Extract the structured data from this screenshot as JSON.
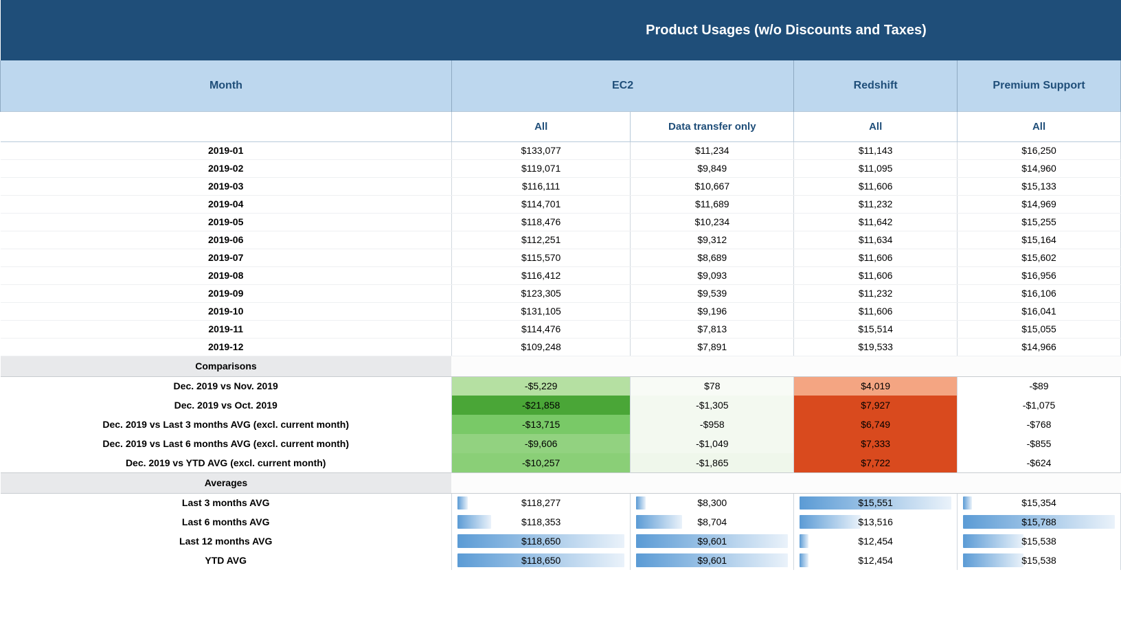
{
  "title": "Product Usages (w/o Discounts and Taxes)",
  "colors": {
    "header_dark": "#1f4e79",
    "header_light": "#bdd7ee",
    "text_navy": "#1f4e79",
    "section_bg": "#e8e9eb",
    "green_light": "#b5e0a2",
    "green_med": "#79c967",
    "green_dark": "#4aa637",
    "red_light": "#f4a582",
    "red_dark": "#d94a1e",
    "bar_blue": "#5b9bd5",
    "bar_fade": "#eaf2fa"
  },
  "headers": {
    "month": "Month",
    "ec2": "EC2",
    "redshift": "Redshift",
    "premium": "Premium Support",
    "ec2_all": "All",
    "ec2_dto": "Data transfer only",
    "redshift_all": "All",
    "premium_all": "All"
  },
  "months": [
    {
      "label": "2019-01",
      "ec2_all": "$133,077",
      "ec2_dto": "$11,234",
      "redshift": "$11,143",
      "premium": "$16,250"
    },
    {
      "label": "2019-02",
      "ec2_all": "$119,071",
      "ec2_dto": "$9,849",
      "redshift": "$11,095",
      "premium": "$14,960"
    },
    {
      "label": "2019-03",
      "ec2_all": "$116,111",
      "ec2_dto": "$10,667",
      "redshift": "$11,606",
      "premium": "$15,133"
    },
    {
      "label": "2019-04",
      "ec2_all": "$114,701",
      "ec2_dto": "$11,689",
      "redshift": "$11,232",
      "premium": "$14,969"
    },
    {
      "label": "2019-05",
      "ec2_all": "$118,476",
      "ec2_dto": "$10,234",
      "redshift": "$11,642",
      "premium": "$15,255"
    },
    {
      "label": "2019-06",
      "ec2_all": "$112,251",
      "ec2_dto": "$9,312",
      "redshift": "$11,634",
      "premium": "$15,164"
    },
    {
      "label": "2019-07",
      "ec2_all": "$115,570",
      "ec2_dto": "$8,689",
      "redshift": "$11,606",
      "premium": "$15,602"
    },
    {
      "label": "2019-08",
      "ec2_all": "$116,412",
      "ec2_dto": "$9,093",
      "redshift": "$11,606",
      "premium": "$16,956"
    },
    {
      "label": "2019-09",
      "ec2_all": "$123,305",
      "ec2_dto": "$9,539",
      "redshift": "$11,232",
      "premium": "$16,106"
    },
    {
      "label": "2019-10",
      "ec2_all": "$131,105",
      "ec2_dto": "$9,196",
      "redshift": "$11,606",
      "premium": "$16,041"
    },
    {
      "label": "2019-11",
      "ec2_all": "$114,476",
      "ec2_dto": "$7,813",
      "redshift": "$15,514",
      "premium": "$15,055"
    },
    {
      "label": "2019-12",
      "ec2_all": "$109,248",
      "ec2_dto": "$7,891",
      "redshift": "$19,533",
      "premium": "$14,966"
    }
  ],
  "sections": {
    "comparisons": "Comparisons",
    "averages": "Averages"
  },
  "comparisons": [
    {
      "label": "Dec. 2019 vs Nov. 2019",
      "ec2_all": {
        "text": "-$5,229",
        "bg": "#b5e0a2"
      },
      "ec2_dto": {
        "text": "$78",
        "bg": "#f8fbf6"
      },
      "redshift": {
        "text": "$4,019",
        "bg": "#f4a582"
      },
      "premium": {
        "text": "-$89",
        "bg": "#ffffff"
      }
    },
    {
      "label": "Dec. 2019 vs Oct. 2019",
      "ec2_all": {
        "text": "-$21,858",
        "bg": "#4aa637"
      },
      "ec2_dto": {
        "text": "-$1,305",
        "bg": "#f3f9f0"
      },
      "redshift": {
        "text": "$7,927",
        "bg": "#d94a1e"
      },
      "premium": {
        "text": "-$1,075",
        "bg": "#ffffff"
      }
    },
    {
      "label": "Dec. 2019 vs Last 3 months AVG (excl. current month)",
      "ec2_all": {
        "text": "-$13,715",
        "bg": "#79c967"
      },
      "ec2_dto": {
        "text": "-$958",
        "bg": "#f3f9f0"
      },
      "redshift": {
        "text": "$6,749",
        "bg": "#d94a1e"
      },
      "premium": {
        "text": "-$768",
        "bg": "#ffffff"
      }
    },
    {
      "label": "Dec. 2019 vs Last 6 months AVG (excl. current month)",
      "ec2_all": {
        "text": "-$9,606",
        "bg": "#92d280"
      },
      "ec2_dto": {
        "text": "-$1,049",
        "bg": "#f3f9f0"
      },
      "redshift": {
        "text": "$7,333",
        "bg": "#d94a1e"
      },
      "premium": {
        "text": "-$855",
        "bg": "#ffffff"
      }
    },
    {
      "label": "Dec. 2019 vs YTD AVG (excl. current month)",
      "ec2_all": {
        "text": "-$10,257",
        "bg": "#8acf77"
      },
      "ec2_dto": {
        "text": "-$1,865",
        "bg": "#eff7eb"
      },
      "redshift": {
        "text": "$7,722",
        "bg": "#d94a1e"
      },
      "premium": {
        "text": "-$624",
        "bg": "#ffffff"
      }
    }
  ],
  "averages": [
    {
      "label": "Last 3 months AVG",
      "ec2_all": {
        "text": "$118,277",
        "bar": 0.06
      },
      "ec2_dto": {
        "text": "$8,300",
        "bar": 0.06
      },
      "redshift": {
        "text": "$15,551",
        "bar": 1.0
      },
      "premium": {
        "text": "$15,354",
        "bar": 0.06
      }
    },
    {
      "label": "Last 6 months AVG",
      "ec2_all": {
        "text": "$118,353",
        "bar": 0.2
      },
      "ec2_dto": {
        "text": "$8,704",
        "bar": 0.3
      },
      "redshift": {
        "text": "$13,516",
        "bar": 0.4
      },
      "premium": {
        "text": "$15,788",
        "bar": 1.0
      }
    },
    {
      "label": "Last 12 months AVG",
      "ec2_all": {
        "text": "$118,650",
        "bar": 1.0
      },
      "ec2_dto": {
        "text": "$9,601",
        "bar": 1.0
      },
      "redshift": {
        "text": "$12,454",
        "bar": 0.06
      },
      "premium": {
        "text": "$15,538",
        "bar": 0.4
      }
    },
    {
      "label": "YTD AVG",
      "ec2_all": {
        "text": "$118,650",
        "bar": 1.0
      },
      "ec2_dto": {
        "text": "$9,601",
        "bar": 1.0
      },
      "redshift": {
        "text": "$12,454",
        "bar": 0.06
      },
      "premium": {
        "text": "$15,538",
        "bar": 0.4
      }
    }
  ]
}
